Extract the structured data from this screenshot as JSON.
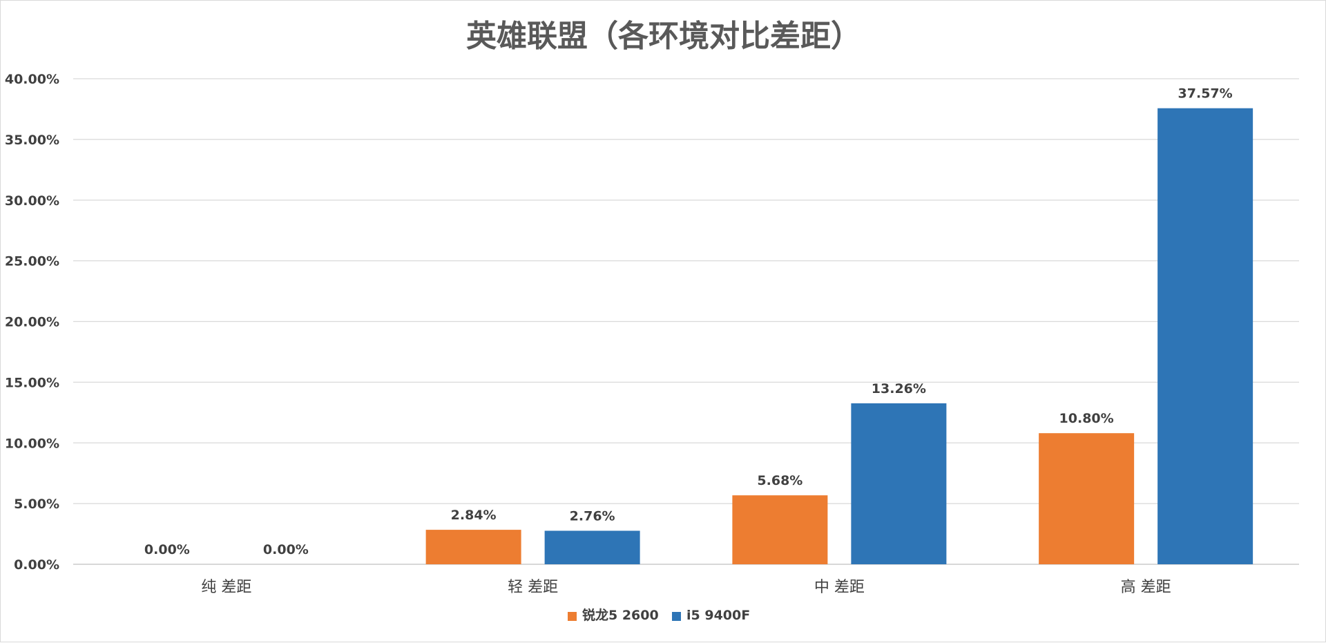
{
  "chart_data": {
    "type": "bar",
    "title": "英雄联盟（各环境对比差距）",
    "categories": [
      "纯 差距",
      "轻 差距",
      "中 差距",
      "高 差距"
    ],
    "series": [
      {
        "name": "锐龙5 2600",
        "color": "#ed7d31",
        "values": [
          0.0,
          2.84,
          5.68,
          10.8
        ],
        "labels": [
          "0.00%",
          "2.84%",
          "5.68%",
          "10.80%"
        ]
      },
      {
        "name": "i5 9400F",
        "color": "#2e75b6",
        "values": [
          0.0,
          2.76,
          13.26,
          37.57
        ],
        "labels": [
          "0.00%",
          "2.76%",
          "13.26%",
          "37.57%"
        ]
      }
    ],
    "ylim": [
      0,
      40
    ],
    "yticks": [
      0,
      5,
      10,
      15,
      20,
      25,
      30,
      35,
      40
    ],
    "ytick_labels": [
      "0.00%",
      "5.00%",
      "10.00%",
      "15.00%",
      "20.00%",
      "25.00%",
      "30.00%",
      "35.00%",
      "40.00%"
    ],
    "xlabel": "",
    "ylabel": "",
    "grid": true,
    "legend_position": "bottom"
  }
}
